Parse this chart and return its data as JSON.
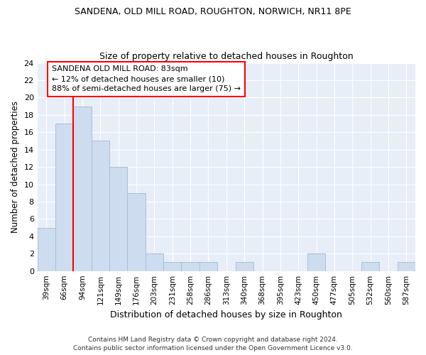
{
  "title1": "SANDENA, OLD MILL ROAD, ROUGHTON, NORWICH, NR11 8PE",
  "title2": "Size of property relative to detached houses in Roughton",
  "xlabel": "Distribution of detached houses by size in Roughton",
  "ylabel": "Number of detached properties",
  "categories": [
    "39sqm",
    "66sqm",
    "94sqm",
    "121sqm",
    "149sqm",
    "176sqm",
    "203sqm",
    "231sqm",
    "258sqm",
    "286sqm",
    "313sqm",
    "340sqm",
    "368sqm",
    "395sqm",
    "423sqm",
    "450sqm",
    "477sqm",
    "505sqm",
    "532sqm",
    "560sqm",
    "587sqm"
  ],
  "values": [
    5,
    17,
    19,
    15,
    12,
    9,
    2,
    1,
    1,
    1,
    0,
    1,
    0,
    0,
    0,
    2,
    0,
    0,
    1,
    0,
    1
  ],
  "bar_color": "#cddcee",
  "bar_edgecolor": "#aabfd8",
  "redline_x": 1.5,
  "annotation_text_line1": "SANDENA OLD MILL ROAD: 83sqm",
  "annotation_text_line2": "← 12% of detached houses are smaller (10)",
  "annotation_text_line3": "88% of semi-detached houses are larger (75) →",
  "ylim": [
    0,
    24
  ],
  "yticks": [
    0,
    2,
    4,
    6,
    8,
    10,
    12,
    14,
    16,
    18,
    20,
    22,
    24
  ],
  "footer1": "Contains HM Land Registry data © Crown copyright and database right 2024.",
  "footer2": "Contains public sector information licensed under the Open Government Licence v3.0.",
  "bg_color": "#ffffff",
  "plot_bg_color": "#e8eef8",
  "grid_color": "#ffffff"
}
